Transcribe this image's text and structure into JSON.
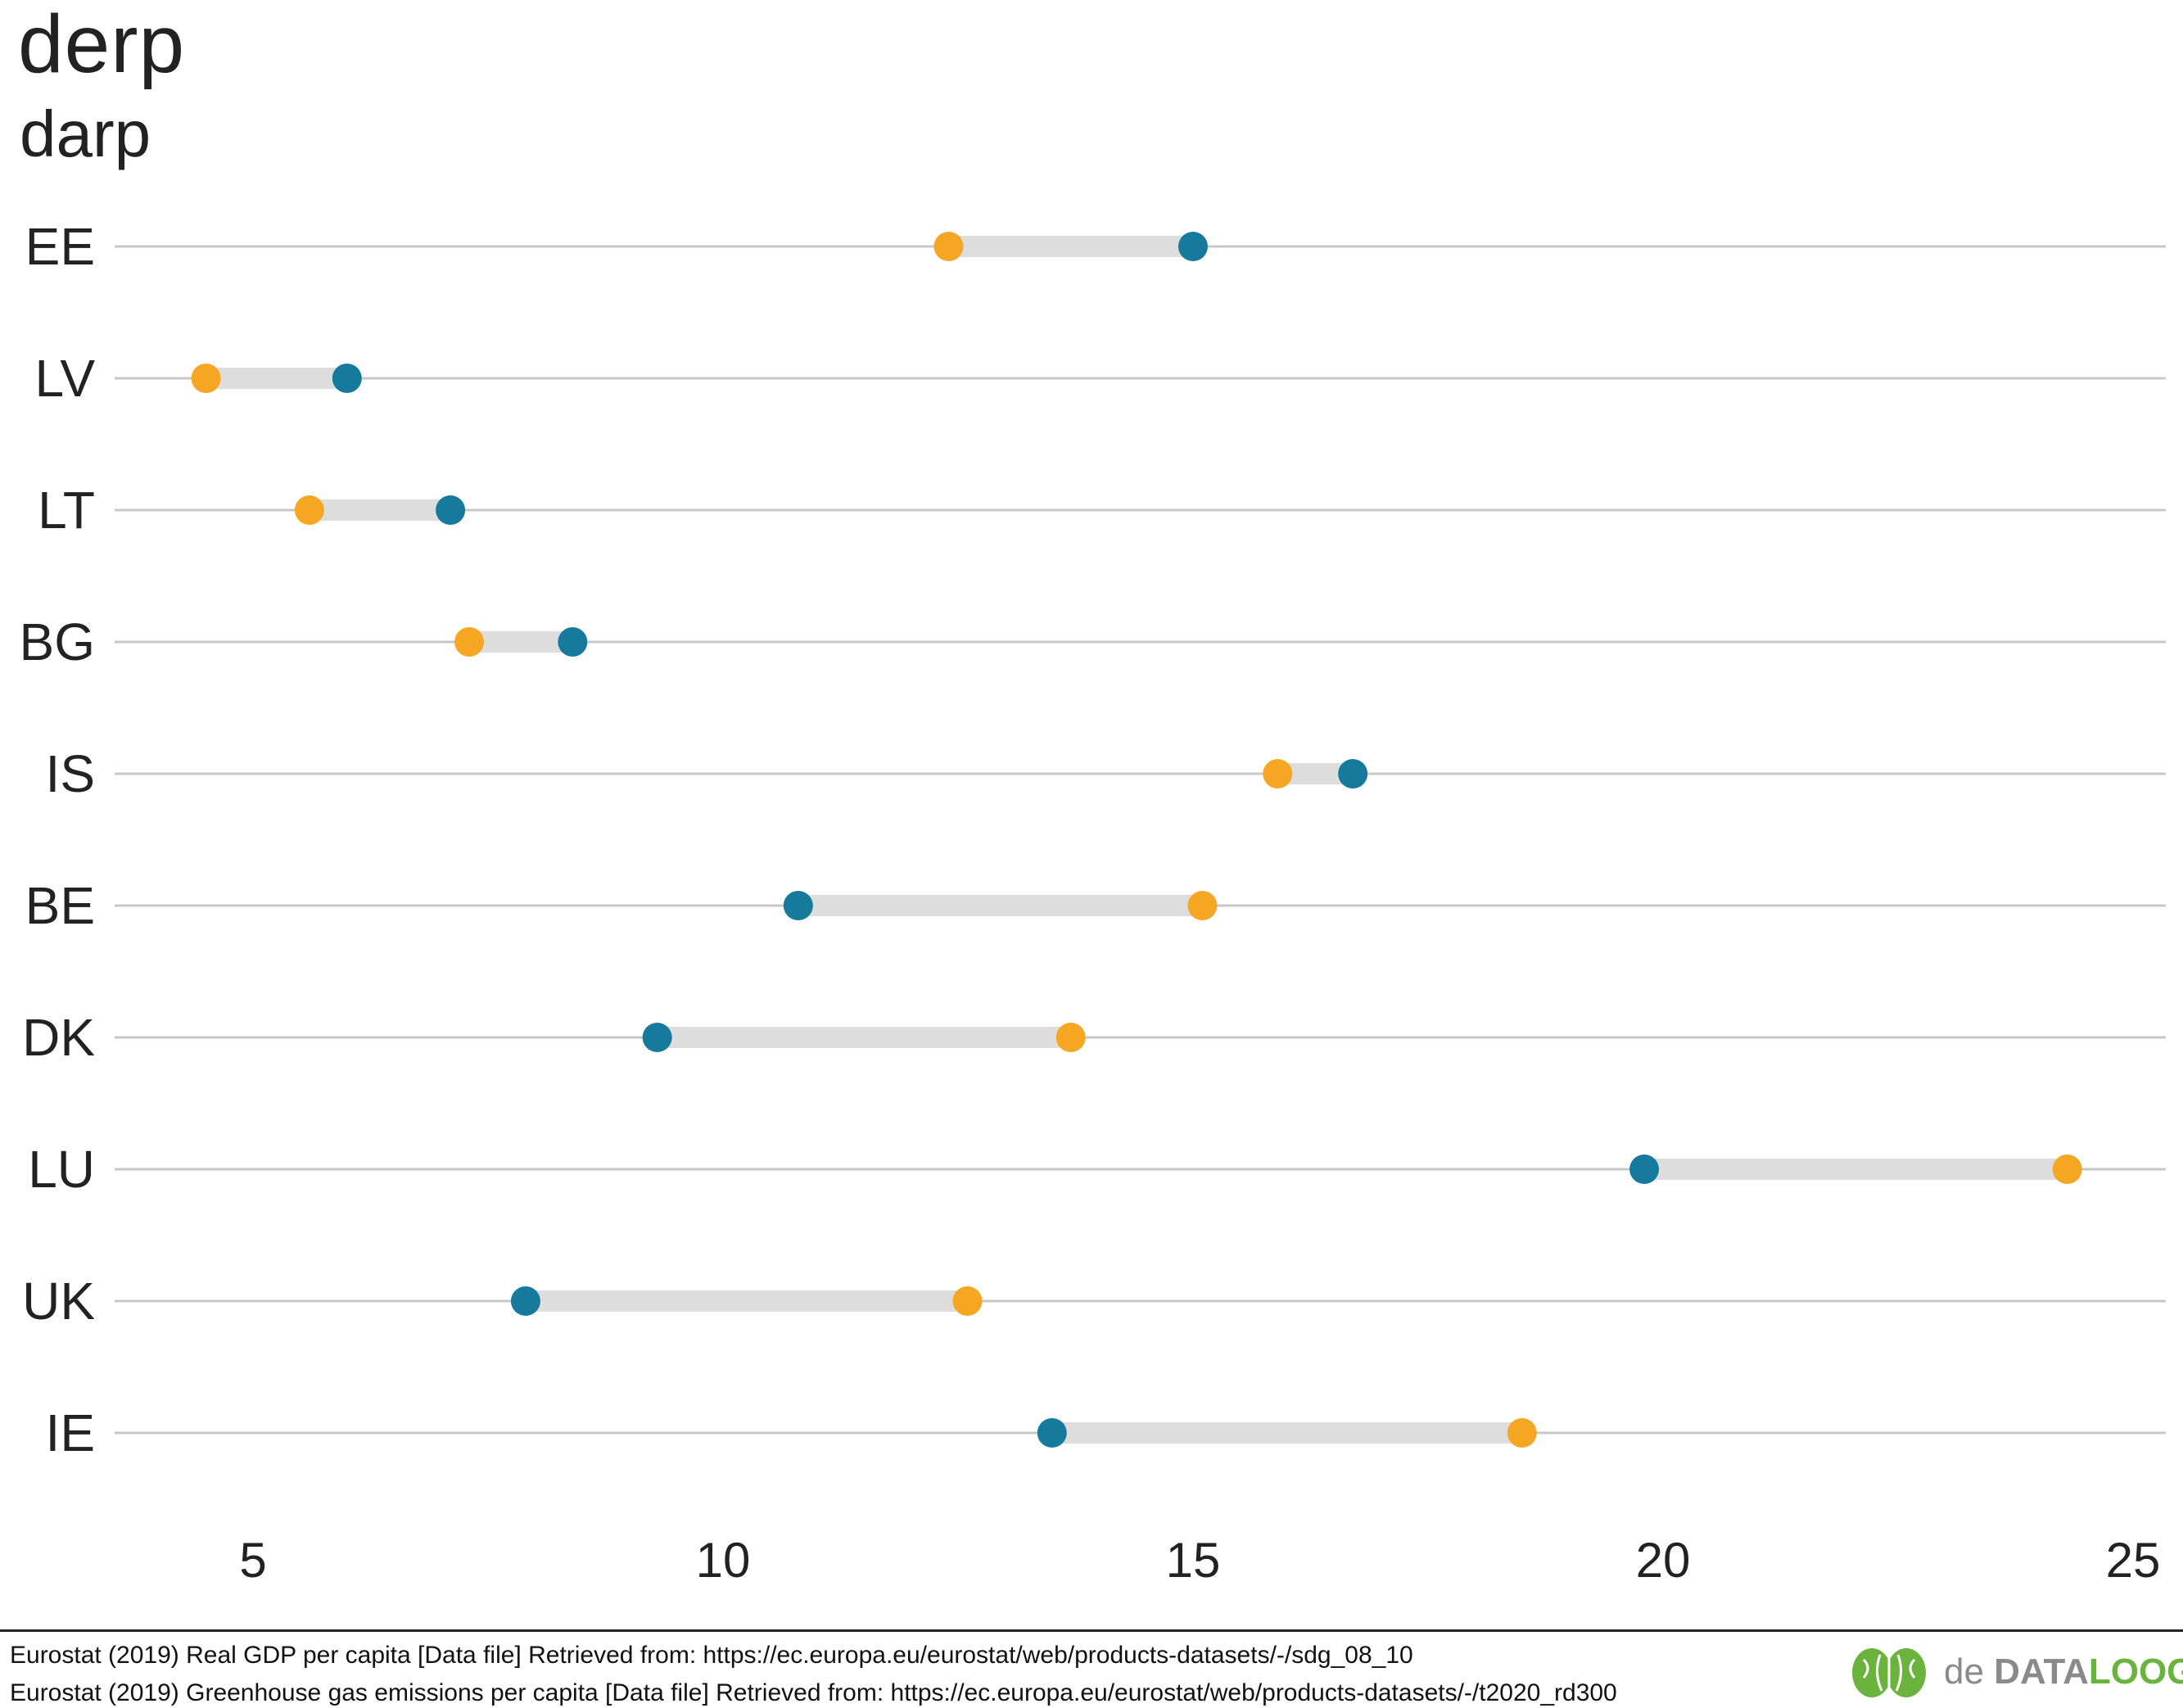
{
  "header": {
    "title": "derp",
    "subtitle": "darp"
  },
  "chart_data": {
    "type": "dumbbell",
    "title": "derp",
    "subtitle": "darp",
    "xlabel": "",
    "ylabel": "",
    "xlim": [
      3.5,
      25.3
    ],
    "xticks": [
      5,
      10,
      15,
      20,
      25
    ],
    "grid": "horizontal lines per category",
    "legend": "none",
    "categories": [
      "EE",
      "LV",
      "LT",
      "BG",
      "IS",
      "BE",
      "DK",
      "LU",
      "UK",
      "IE"
    ],
    "series": [
      {
        "color": "#f5a623",
        "values": [
          12.4,
          4.5,
          5.6,
          7.3,
          15.9,
          15.1,
          13.7,
          24.3,
          12.6,
          18.5
        ]
      },
      {
        "color": "#157a9c",
        "values": [
          15.0,
          6.0,
          7.1,
          8.4,
          16.7,
          10.8,
          9.3,
          19.8,
          7.9,
          13.5
        ]
      }
    ],
    "segment_color": "#dddddd",
    "gridline_color": "#c8c8c8"
  },
  "footer": {
    "source_1": "Eurostat (2019) Real GDP per capita [Data file] Retrieved from: https://ec.europa.eu/eurostat/web/products-datasets/-/sdg_08_10",
    "source_2": "Eurostat (2019) Greenhouse gas emissions per capita [Data file] Retrieved from: https://ec.europa.eu/eurostat/web/products-datasets/-/t2020_rd300",
    "logo_prefix": "de ",
    "logo_data": "DATA",
    "logo_loog": "LOOG",
    "logo_icon": "brain-icon"
  }
}
